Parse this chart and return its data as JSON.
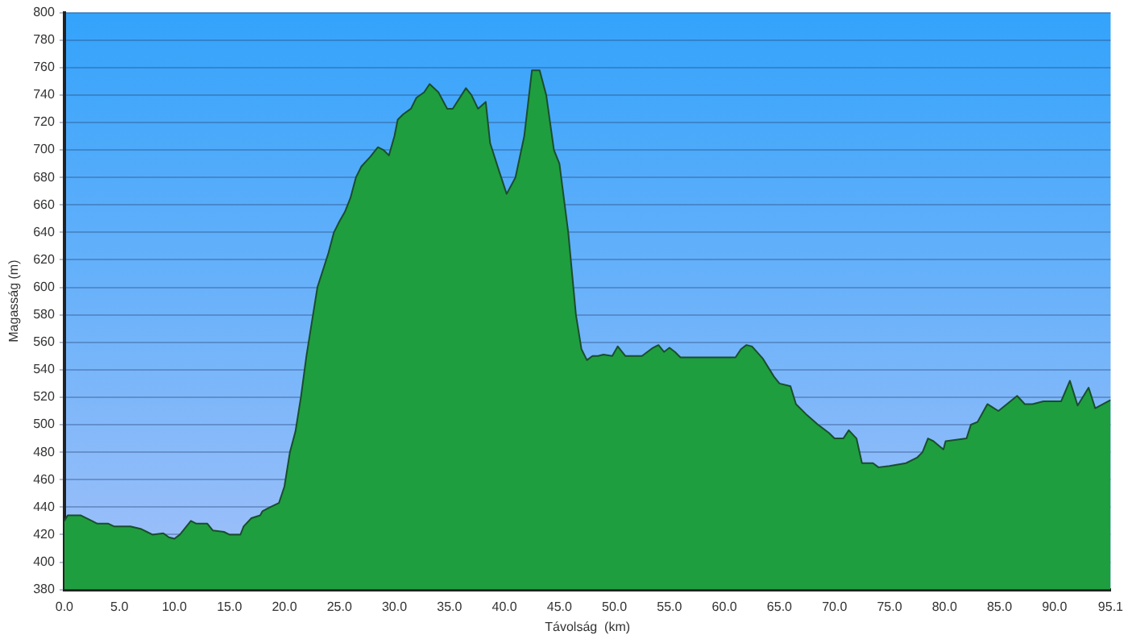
{
  "chart_data": {
    "type": "area",
    "xlabel": "Távolság  (km)",
    "ylabel": "Magasság (m)",
    "x": [
      0,
      0.3,
      1.5,
      2.5,
      3,
      4,
      4.5,
      6,
      7,
      7.5,
      8,
      9,
      9.5,
      10,
      10.5,
      11,
      11.5,
      12,
      13,
      13.5,
      14.5,
      15,
      16,
      16.3,
      17,
      17.8,
      18,
      18.7,
      19.5,
      20,
      20.5,
      21,
      21.5,
      22,
      22.5,
      23,
      24,
      24.5,
      25,
      25.5,
      26,
      26.5,
      27,
      27.8,
      28.5,
      29,
      29.5,
      30,
      30.3,
      30.8,
      31.5,
      32,
      32.7,
      33.2,
      34,
      34.8,
      35.3,
      36.5,
      37,
      37.6,
      38.3,
      38.7,
      39.5,
      40.2,
      41,
      41.8,
      42.5,
      43.2,
      43.8,
      44.5,
      45,
      45.8,
      46.5,
      47,
      47.5,
      48,
      48.5,
      49,
      49.8,
      50.3,
      51,
      52.5,
      53.5,
      54,
      54.5,
      55,
      55.5,
      56,
      61,
      61.5,
      62,
      62.5,
      63.5,
      64.5,
      65,
      66,
      66.5,
      67.5,
      68.5,
      69.5,
      70,
      70.8,
      71.3,
      72,
      72.5,
      73.5,
      74,
      75,
      76.5,
      77.5,
      78,
      78.5,
      79,
      79.9,
      80.1,
      82,
      82.4,
      83,
      83.9,
      84.9,
      86.6,
      87.3,
      88,
      89,
      90.6,
      91.4,
      92.1,
      93.1,
      93.7,
      95.1
    ],
    "series": [
      {
        "color": "#1f9e3f",
        "values": [
          430,
          434,
          434,
          430,
          428,
          428,
          426,
          426,
          424,
          422,
          420,
          421,
          418,
          417,
          420,
          425,
          430,
          428,
          428,
          423,
          422,
          420,
          420,
          426,
          432,
          434,
          437,
          440,
          443,
          455,
          480,
          495,
          520,
          550,
          575,
          600,
          625,
          640,
          648,
          655,
          665,
          680,
          688,
          695,
          702,
          700,
          696,
          710,
          722,
          726,
          730,
          738,
          742,
          748,
          742,
          730,
          730,
          745,
          740,
          730,
          735,
          705,
          685,
          668,
          680,
          710,
          758,
          758,
          740,
          700,
          690,
          640,
          580,
          555,
          547,
          550,
          550,
          551,
          550,
          557,
          550,
          550,
          556,
          558,
          553,
          556,
          553,
          549,
          549,
          555,
          558,
          557,
          548,
          535,
          530,
          528,
          515,
          507,
          500,
          494,
          490,
          490,
          496,
          490,
          472,
          472,
          469,
          470,
          472,
          476,
          480,
          490,
          488,
          482,
          488,
          490,
          500,
          502,
          515,
          510,
          521,
          515,
          515,
          517,
          517,
          532,
          514,
          527,
          512,
          518
        ]
      }
    ],
    "xlim": [
      0,
      95.1
    ],
    "ylim": [
      380,
      800
    ],
    "xticks": [
      {
        "value": 0,
        "label": "0.0"
      },
      {
        "value": 5,
        "label": "5.0"
      },
      {
        "value": 10,
        "label": "10.0"
      },
      {
        "value": 15,
        "label": "15.0"
      },
      {
        "value": 20,
        "label": "20.0"
      },
      {
        "value": 25,
        "label": "25.0"
      },
      {
        "value": 30,
        "label": "30.0"
      },
      {
        "value": 35,
        "label": "35.0"
      },
      {
        "value": 40,
        "label": "40.0"
      },
      {
        "value": 45,
        "label": "45.0"
      },
      {
        "value": 50,
        "label": "50.0"
      },
      {
        "value": 55,
        "label": "55.0"
      },
      {
        "value": 60,
        "label": "60.0"
      },
      {
        "value": 65,
        "label": "65.0"
      },
      {
        "value": 70,
        "label": "70.0"
      },
      {
        "value": 75,
        "label": "75.0"
      },
      {
        "value": 80,
        "label": "80.0"
      },
      {
        "value": 85,
        "label": "85.0"
      },
      {
        "value": 90,
        "label": "90.0"
      },
      {
        "value": 95.1,
        "label": "95.1"
      }
    ],
    "yticks": [
      380,
      400,
      420,
      440,
      460,
      480,
      500,
      520,
      540,
      560,
      580,
      600,
      620,
      640,
      660,
      680,
      700,
      720,
      740,
      760,
      780,
      800
    ],
    "grid": "y",
    "marker": "none"
  }
}
